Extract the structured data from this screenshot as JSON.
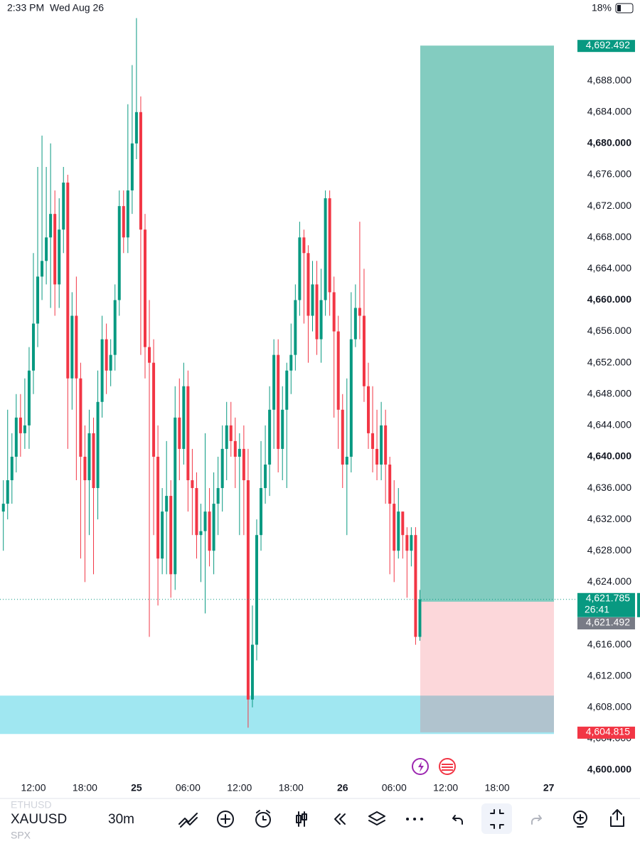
{
  "status_bar": {
    "time": "2:33 PM",
    "date": "Wed Aug 26",
    "battery": "18%"
  },
  "chart_data": {
    "type": "candlestick",
    "open": [
      4633,
      4634,
      4637,
      4640,
      4645,
      4643,
      4644,
      4651,
      4657,
      4663,
      4665,
      4668,
      4671,
      4662,
      4669,
      4675,
      4650,
      4658,
      4650,
      4640,
      4637,
      4643,
      4636,
      4647,
      4655,
      4651,
      4653,
      4660,
      4672,
      4668,
      4674,
      4680,
      4684,
      4669,
      4654,
      4652,
      4640,
      4627,
      4633,
      4635,
      4625,
      4645,
      4641,
      4649,
      4637,
      4636,
      4630,
      4630.5,
      4633,
      4628,
      4634,
      4636,
      4641,
      4644,
      4642,
      4640,
      4641,
      4637,
      4609,
      4616,
      4630,
      4636,
      4639,
      4646,
      4653,
      4641,
      4646,
      4651,
      4653,
      4660,
      4668,
      4666,
      4658,
      4662,
      4655,
      4660,
      4673,
      4661,
      4656,
      4646,
      4639,
      4640,
      4655,
      4659,
      4658,
      4649,
      4643,
      4641,
      4639,
      4644,
      4639,
      4634,
      4628,
      4633,
      4630,
      4628,
      4630,
      4617
    ],
    "high": [
      4637,
      4646,
      4643,
      4648,
      4648,
      4650,
      4654,
      4666,
      4677,
      4681,
      4677,
      4680,
      4674,
      4673,
      4677,
      4676,
      4661,
      4663,
      4652,
      4644,
      4646,
      4645,
      4651,
      4658,
      4657,
      4655,
      4662,
      4674,
      4674,
      4685,
      4690,
      4696,
      4686,
      4671,
      4660,
      4655,
      4644,
      4636,
      4642,
      4637,
      4649,
      4650,
      4652,
      4651,
      4641,
      4638,
      4634,
      4643,
      4636,
      4638,
      4640,
      4644,
      4647,
      4647,
      4645,
      4643,
      4644,
      4641,
      4621,
      4632,
      4642,
      4644,
      4649,
      4655,
      4655,
      4649,
      4652,
      4657,
      4662,
      4670,
      4669,
      4667,
      4665,
      4665,
      4664,
      4674,
      4674,
      4663,
      4658,
      4648,
      4650,
      4661,
      4662,
      4670,
      4664,
      4652,
      4649,
      4646,
      4647,
      4646,
      4640,
      4637,
      4636,
      4633,
      4631,
      4631,
      4631,
      4623
    ],
    "low": [
      4628,
      4632,
      4634,
      4638,
      4640,
      4641,
      4641,
      4648,
      4654,
      4660,
      4662,
      4659,
      4658,
      4659,
      4666,
      4641,
      4646,
      4637,
      4627,
      4624,
      4630,
      4625,
      4632,
      4645,
      4648,
      4649,
      4651,
      4658,
      4666,
      4666,
      4671,
      4678,
      4653,
      4650,
      4617,
      4630,
      4621,
      4625,
      4625,
      4622,
      4623,
      4637,
      4639,
      4633,
      4630,
      4627,
      4624,
      4620,
      4626,
      4625,
      4630,
      4633,
      4637,
      4640,
      4636,
      4630,
      4630,
      4605.4,
      4608,
      4614,
      4628,
      4634,
      4635,
      4641,
      4638,
      4637,
      4636,
      4648,
      4651,
      4658,
      4657,
      4652,
      4656,
      4653,
      4652,
      4658,
      4658,
      4645,
      4641,
      4636,
      4630,
      4638,
      4654,
      4655,
      4647,
      4641,
      4638,
      4637,
      4637,
      4634,
      4625,
      4624,
      4627,
      4627,
      4622,
      4626,
      4616,
      4616.5
    ],
    "close": [
      4634,
      4637,
      4640,
      4645,
      4643,
      4644,
      4651,
      4657,
      4663,
      4665,
      4668,
      4671,
      4662,
      4669,
      4675,
      4650,
      4658,
      4650,
      4640,
      4637,
      4643,
      4636,
      4647,
      4655,
      4651,
      4653,
      4660,
      4672,
      4668,
      4674,
      4680,
      4684,
      4669,
      4654,
      4652,
      4640,
      4627,
      4633,
      4635,
      4625,
      4645,
      4641,
      4649,
      4637,
      4636,
      4630,
      4630.5,
      4633,
      4628,
      4634,
      4636,
      4641,
      4644,
      4642,
      4640,
      4641,
      4637,
      4609,
      4616,
      4630,
      4636,
      4639,
      4646,
      4653,
      4641,
      4646,
      4651,
      4653,
      4660,
      4668,
      4666,
      4658,
      4662,
      4655,
      4660,
      4673,
      4661,
      4656,
      4646,
      4639,
      4640,
      4655,
      4659,
      4658,
      4649,
      4643,
      4641,
      4639,
      4644,
      4639,
      4634,
      4628,
      4633,
      4630,
      4628,
      4630,
      4617,
      4621.785
    ],
    "up_color": "#089981",
    "down_color": "#f23645",
    "xlim": [
      -0.78,
      131.7
    ],
    "xticks": [
      {
        "value": 7,
        "label": "12:00"
      },
      {
        "value": 19,
        "label": "18:00"
      },
      {
        "value": 31,
        "label": "25"
      },
      {
        "value": 43,
        "label": "06:00"
      },
      {
        "value": 55,
        "label": "12:00"
      },
      {
        "value": 67,
        "label": "18:00"
      },
      {
        "value": 79,
        "label": "26"
      },
      {
        "value": 91,
        "label": "06:00"
      },
      {
        "value": 103,
        "label": "12:00"
      },
      {
        "value": 115,
        "label": "18:00"
      },
      {
        "value": 127,
        "label": "27"
      }
    ],
    "ylim": [
      4599,
      4696.5
    ],
    "yticks": [
      {
        "value": 4600,
        "label": "4,600.000"
      },
      {
        "value": 4604,
        "label": "4,604.000"
      },
      {
        "value": 4608,
        "label": "4,608.000"
      },
      {
        "value": 4612,
        "label": "4,612.000"
      },
      {
        "value": 4616,
        "label": "4,616.000"
      },
      {
        "value": 4624,
        "label": "4,624.000"
      },
      {
        "value": 4628,
        "label": "4,628.000"
      },
      {
        "value": 4632,
        "label": "4,632.000"
      },
      {
        "value": 4636,
        "label": "4,636.000"
      },
      {
        "value": 4640,
        "label": "4,640.000"
      },
      {
        "value": 4644,
        "label": "4,644.000"
      },
      {
        "value": 4648,
        "label": "4,648.000"
      },
      {
        "value": 4652,
        "label": "4,652.000"
      },
      {
        "value": 4656,
        "label": "4,656.000"
      },
      {
        "value": 4660,
        "label": "4,660.000"
      },
      {
        "value": 4664,
        "label": "4,664.000"
      },
      {
        "value": 4668,
        "label": "4,668.000"
      },
      {
        "value": 4672,
        "label": "4,672.000"
      },
      {
        "value": 4676,
        "label": "4,676.000"
      },
      {
        "value": 4680,
        "label": "4,680.000"
      },
      {
        "value": 4684,
        "label": "4,684.000"
      },
      {
        "value": 4688,
        "label": "4,688.000"
      }
    ],
    "position": {
      "target": {
        "value": 4692.492,
        "label": "4,692.492"
      },
      "entry": {
        "value": 4621.492,
        "label": "4,621.492"
      },
      "stop": {
        "value": 4604.815,
        "label": "4,604.815"
      }
    },
    "last_price": {
      "value": 4621.785,
      "label": "4,621.785"
    },
    "countdown": "26:41",
    "highlight_zone": [
      4604.6,
      4609.5
    ]
  },
  "toolbar": {
    "symbol": "XAUUSD",
    "interval": "30m",
    "watchlist": [
      "ETHUSD",
      "SPX"
    ]
  }
}
